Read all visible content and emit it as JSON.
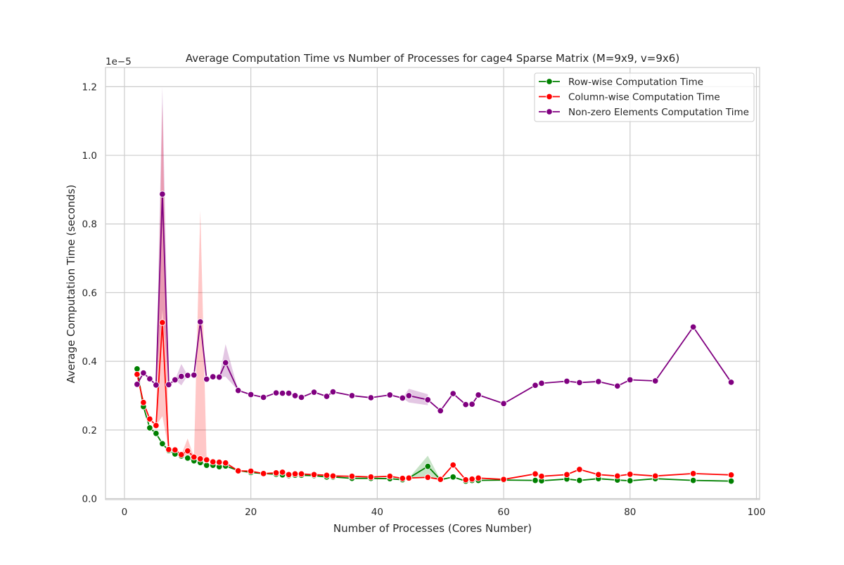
{
  "chart_data": {
    "type": "line",
    "title": "Average Computation Time vs Number of Processes for cage4 Sparse Matrix (M=9x9, v=9x6)",
    "xlabel": "Number of Processes (Cores Number)",
    "ylabel": "Average Computation Time (seconds)",
    "y_scale_label": "1e−5",
    "xlim": [
      -3,
      100.5
    ],
    "ylim": [
      -0.003,
      1.256
    ],
    "x_ticks": [
      0,
      20,
      40,
      60,
      80,
      100
    ],
    "y_ticks": [
      0.0,
      0.2,
      0.4,
      0.6,
      0.8,
      1.0,
      1.2
    ],
    "x_tick_labels": [
      "0",
      "20",
      "40",
      "60",
      "80",
      "100"
    ],
    "y_tick_labels": [
      "0.0",
      "0.2",
      "0.4",
      "0.6",
      "0.8",
      "1.0",
      "1.2"
    ],
    "grid": true,
    "legend_position": "top-right",
    "series": [
      {
        "name": "Row-wise Computation Time",
        "color": "#008000",
        "points": [
          [
            2,
            0.378
          ],
          [
            3,
            0.268
          ],
          [
            4,
            0.206
          ],
          [
            5,
            0.19
          ],
          [
            6,
            0.16
          ],
          [
            7,
            0.14
          ],
          [
            8,
            0.13
          ],
          [
            9,
            0.124
          ],
          [
            10,
            0.118
          ],
          [
            11,
            0.11
          ],
          [
            12,
            0.105
          ],
          [
            13,
            0.097
          ],
          [
            14,
            0.097
          ],
          [
            15,
            0.093
          ],
          [
            16,
            0.095
          ],
          [
            18,
            0.082
          ],
          [
            20,
            0.076
          ],
          [
            22,
            0.073
          ],
          [
            24,
            0.071
          ],
          [
            25,
            0.069
          ],
          [
            26,
            0.067
          ],
          [
            27,
            0.068
          ],
          [
            28,
            0.068
          ],
          [
            30,
            0.067
          ],
          [
            32,
            0.063
          ],
          [
            33,
            0.063
          ],
          [
            36,
            0.059
          ],
          [
            39,
            0.059
          ],
          [
            42,
            0.058
          ],
          [
            44,
            0.055
          ],
          [
            45,
            0.06
          ],
          [
            48,
            0.094
          ],
          [
            50,
            0.055
          ],
          [
            52,
            0.063
          ],
          [
            54,
            0.051
          ],
          [
            55,
            0.053
          ],
          [
            56,
            0.053
          ],
          [
            60,
            0.054
          ],
          [
            65,
            0.053
          ],
          [
            66,
            0.052
          ],
          [
            70,
            0.057
          ],
          [
            72,
            0.053
          ],
          [
            75,
            0.058
          ],
          [
            78,
            0.054
          ],
          [
            80,
            0.052
          ],
          [
            84,
            0.058
          ],
          [
            90,
            0.053
          ],
          [
            96,
            0.051
          ]
        ]
      },
      {
        "name": "Column-wise Computation Time",
        "color": "#ff0000",
        "points": [
          [
            2,
            0.362
          ],
          [
            3,
            0.28
          ],
          [
            4,
            0.232
          ],
          [
            5,
            0.213
          ],
          [
            6,
            0.513
          ],
          [
            7,
            0.143
          ],
          [
            8,
            0.142
          ],
          [
            9,
            0.128
          ],
          [
            10,
            0.139
          ],
          [
            11,
            0.121
          ],
          [
            12,
            0.116
          ],
          [
            13,
            0.113
          ],
          [
            14,
            0.107
          ],
          [
            15,
            0.106
          ],
          [
            16,
            0.104
          ],
          [
            18,
            0.081
          ],
          [
            20,
            0.08
          ],
          [
            22,
            0.073
          ],
          [
            24,
            0.075
          ],
          [
            25,
            0.077
          ],
          [
            26,
            0.07
          ],
          [
            27,
            0.072
          ],
          [
            28,
            0.072
          ],
          [
            30,
            0.07
          ],
          [
            32,
            0.068
          ],
          [
            33,
            0.066
          ],
          [
            36,
            0.065
          ],
          [
            39,
            0.063
          ],
          [
            42,
            0.065
          ],
          [
            44,
            0.059
          ],
          [
            45,
            0.06
          ],
          [
            48,
            0.062
          ],
          [
            50,
            0.056
          ],
          [
            52,
            0.098
          ],
          [
            54,
            0.055
          ],
          [
            55,
            0.057
          ],
          [
            56,
            0.06
          ],
          [
            60,
            0.056
          ],
          [
            65,
            0.072
          ],
          [
            66,
            0.065
          ],
          [
            70,
            0.07
          ],
          [
            72,
            0.085
          ],
          [
            75,
            0.07
          ],
          [
            78,
            0.066
          ],
          [
            80,
            0.071
          ],
          [
            84,
            0.066
          ],
          [
            90,
            0.073
          ],
          [
            96,
            0.069
          ]
        ]
      },
      {
        "name": "Non-zero Elements Computation Time",
        "color": "#800080",
        "points": [
          [
            2,
            0.333
          ],
          [
            3,
            0.366
          ],
          [
            4,
            0.349
          ],
          [
            5,
            0.331
          ],
          [
            6,
            0.887
          ],
          [
            7,
            0.332
          ],
          [
            8,
            0.346
          ],
          [
            9,
            0.356
          ],
          [
            10,
            0.359
          ],
          [
            11,
            0.36
          ],
          [
            12,
            0.515
          ],
          [
            13,
            0.348
          ],
          [
            14,
            0.355
          ],
          [
            15,
            0.354
          ],
          [
            16,
            0.396
          ],
          [
            18,
            0.315
          ],
          [
            20,
            0.303
          ],
          [
            22,
            0.295
          ],
          [
            24,
            0.308
          ],
          [
            25,
            0.307
          ],
          [
            26,
            0.307
          ],
          [
            27,
            0.3
          ],
          [
            28,
            0.295
          ],
          [
            30,
            0.31
          ],
          [
            32,
            0.298
          ],
          [
            33,
            0.311
          ],
          [
            36,
            0.3
          ],
          [
            39,
            0.294
          ],
          [
            42,
            0.302
          ],
          [
            44,
            0.293
          ],
          [
            45,
            0.3
          ],
          [
            48,
            0.288
          ],
          [
            50,
            0.256
          ],
          [
            52,
            0.306
          ],
          [
            54,
            0.274
          ],
          [
            55,
            0.275
          ],
          [
            56,
            0.302
          ],
          [
            60,
            0.277
          ],
          [
            65,
            0.33
          ],
          [
            66,
            0.336
          ],
          [
            70,
            0.342
          ],
          [
            72,
            0.338
          ],
          [
            75,
            0.341
          ],
          [
            78,
            0.328
          ],
          [
            80,
            0.346
          ],
          [
            84,
            0.343
          ],
          [
            90,
            0.5
          ],
          [
            96,
            0.339
          ]
        ]
      }
    ],
    "confidence_bands": [
      {
        "series": "Non-zero Elements Computation Time",
        "color": "#800080",
        "x": [
          5,
          6,
          7
        ],
        "low": [
          0.331,
          0.55,
          0.332
        ],
        "high": [
          0.331,
          1.2,
          0.332
        ]
      },
      {
        "series": "Non-zero Elements Computation Time",
        "color": "#800080",
        "x": [
          8,
          9,
          10
        ],
        "low": [
          0.346,
          0.33,
          0.359
        ],
        "high": [
          0.346,
          0.392,
          0.359
        ]
      },
      {
        "series": "Non-zero Elements Computation Time",
        "color": "#800080",
        "x": [
          11,
          12,
          13
        ],
        "low": [
          0.36,
          0.5,
          0.348
        ],
        "high": [
          0.36,
          0.53,
          0.348
        ]
      },
      {
        "series": "Non-zero Elements Computation Time",
        "color": "#800080",
        "x": [
          15,
          16,
          18
        ],
        "low": [
          0.354,
          0.355,
          0.315
        ],
        "high": [
          0.354,
          0.45,
          0.315
        ]
      },
      {
        "series": "Non-zero Elements Computation Time",
        "color": "#800080",
        "x": [
          44,
          45,
          48
        ],
        "low": [
          0.293,
          0.28,
          0.272
        ],
        "high": [
          0.293,
          0.32,
          0.304
        ]
      },
      {
        "series": "Column-wise Computation Time",
        "color": "#ff0000",
        "x": [
          5,
          6,
          7
        ],
        "low": [
          0.213,
          0.24,
          0.143
        ],
        "high": [
          0.213,
          1.15,
          0.143
        ]
      },
      {
        "series": "Column-wise Computation Time",
        "color": "#ff0000",
        "x": [
          9,
          10,
          11
        ],
        "low": [
          0.128,
          0.115,
          0.121
        ],
        "high": [
          0.128,
          0.175,
          0.121
        ]
      },
      {
        "series": "Column-wise Computation Time",
        "color": "#ff0000",
        "x": [
          11,
          12,
          13
        ],
        "low": [
          0.121,
          0.11,
          0.113
        ],
        "high": [
          0.121,
          0.84,
          0.113
        ]
      },
      {
        "series": "Row-wise Computation Time",
        "color": "#008000",
        "x": [
          45,
          48,
          50
        ],
        "low": [
          0.06,
          0.065,
          0.055
        ],
        "high": [
          0.06,
          0.125,
          0.055
        ]
      }
    ]
  }
}
